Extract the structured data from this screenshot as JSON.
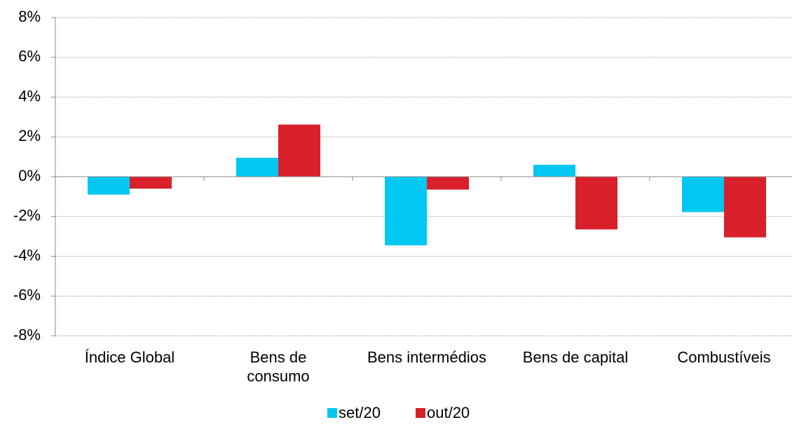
{
  "chart_data": {
    "type": "bar",
    "categories": [
      "Índice Global",
      "Bens de\nconsumo",
      "Bens intermédios",
      "Bens de capital",
      "Combustíveis"
    ],
    "series": [
      {
        "name": "set/20",
        "color": "#00c8f0",
        "values": [
          -0.9,
          0.95,
          -3.45,
          0.6,
          -1.78
        ]
      },
      {
        "name": "out/20",
        "color": "#d9202a",
        "values": [
          -0.6,
          2.62,
          -0.65,
          -2.65,
          -3.05
        ]
      }
    ],
    "ylim": [
      -8,
      8
    ],
    "yticks": [
      {
        "value": -8,
        "label": "-8%"
      },
      {
        "value": -6,
        "label": "-6%"
      },
      {
        "value": -4,
        "label": "-4%"
      },
      {
        "value": -2,
        "label": "-2%"
      },
      {
        "value": 0,
        "label": "0%"
      },
      {
        "value": 2,
        "label": "2%"
      },
      {
        "value": 4,
        "label": "4%"
      },
      {
        "value": 6,
        "label": "6%"
      },
      {
        "value": 8,
        "label": "8%"
      }
    ],
    "grid": true,
    "legend": "bottom"
  }
}
